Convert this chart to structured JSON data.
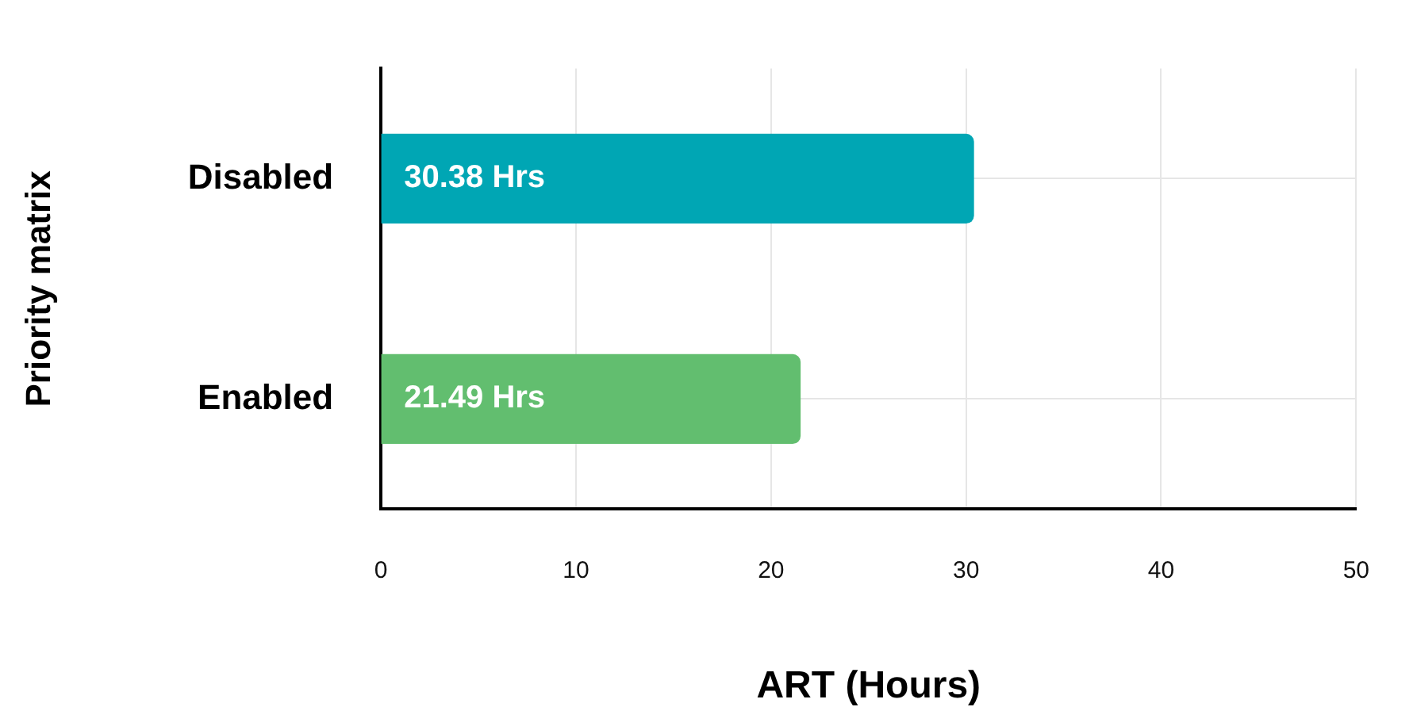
{
  "chart_data": {
    "type": "bar",
    "orientation": "horizontal",
    "xlabel": "ART (Hours)",
    "ylabel": "Priority matrix",
    "categories": [
      "Disabled",
      "Enabled"
    ],
    "values": [
      30.38,
      21.49
    ],
    "colors": [
      "#00a6b4",
      "#62be6f"
    ],
    "value_labels": [
      "30.38 Hrs",
      "21.49 Hrs"
    ],
    "xlim": [
      0,
      50
    ],
    "xticks": [
      0,
      10,
      20,
      30,
      40,
      50
    ],
    "grid": true,
    "legend": false
  }
}
